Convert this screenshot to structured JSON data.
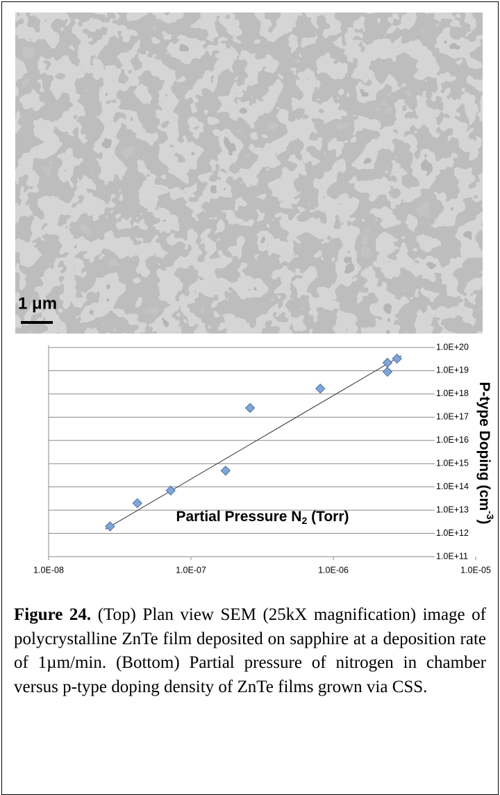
{
  "image": {
    "scale_label": "1 μm"
  },
  "chart_data": {
    "type": "scatter",
    "xlabel": {
      "text": "Partial Pressure N",
      "sub": "2",
      "tail": " (Torr)"
    },
    "ylabel": {
      "text": "P-type Doping (cm",
      "sup": "-3",
      "tail": ")"
    },
    "log_x": true,
    "log_y": true,
    "grid": true,
    "xlim": [
      1e-08,
      1e-05
    ],
    "xticks": [
      {
        "value": 1e-08,
        "label": "1.0E-08"
      },
      {
        "value": 1e-07,
        "label": "1.0E-07"
      },
      {
        "value": 1e-06,
        "label": "1.0E-06"
      },
      {
        "value": 1e-05,
        "label": "1.0E-05"
      }
    ],
    "ylim": [
      100000000000.0,
      1e+20
    ],
    "yticks": [
      {
        "value": 100000000000.0,
        "label": "1.0E+11"
      },
      {
        "value": 1000000000000.0,
        "label": "1.0E+12"
      },
      {
        "value": 10000000000000.0,
        "label": "1.0E+13"
      },
      {
        "value": 100000000000000.0,
        "label": "1.0E+14"
      },
      {
        "value": 1000000000000000.0,
        "label": "1.0E+15"
      },
      {
        "value": 1e+16,
        "label": "1.0E+16"
      },
      {
        "value": 1e+17,
        "label": "1.0E+17"
      },
      {
        "value": 1e+18,
        "label": "1.0E+18"
      },
      {
        "value": 1e+19,
        "label": "1.0E+19"
      },
      {
        "value": 1e+20,
        "label": "1.0E+20"
      }
    ],
    "color": "#7fa6d8",
    "x": [
      2.7e-08,
      4.2e-08,
      7.2e-08,
      1.75e-07,
      2.6e-07,
      8.1e-07,
      2.4e-06,
      2.4e-06,
      2.8e-06
    ],
    "values": [
      2000000000000.0,
      20000000000000.0,
      70000000000000.0,
      500000000000000.0,
      2.5e+17,
      1.7e+18,
      2.2e+19,
      9e+18,
      3.3e+19
    ],
    "trendline": {
      "color": "#333333",
      "x": [
        2.5e-08,
        3e-06
      ],
      "values": [
        1500000000000.0,
        4.4e+19
      ]
    }
  },
  "caption": {
    "label": "Figure 24.",
    "text": "(Top) Plan view SEM (25kX magnification) image of polycrystalline ZnTe film deposited on sapphire at a deposition rate of 1µm/min. (Bottom) Partial pressure of nitrogen in chamber versus p-type doping density of ZnTe films grown via CSS."
  }
}
